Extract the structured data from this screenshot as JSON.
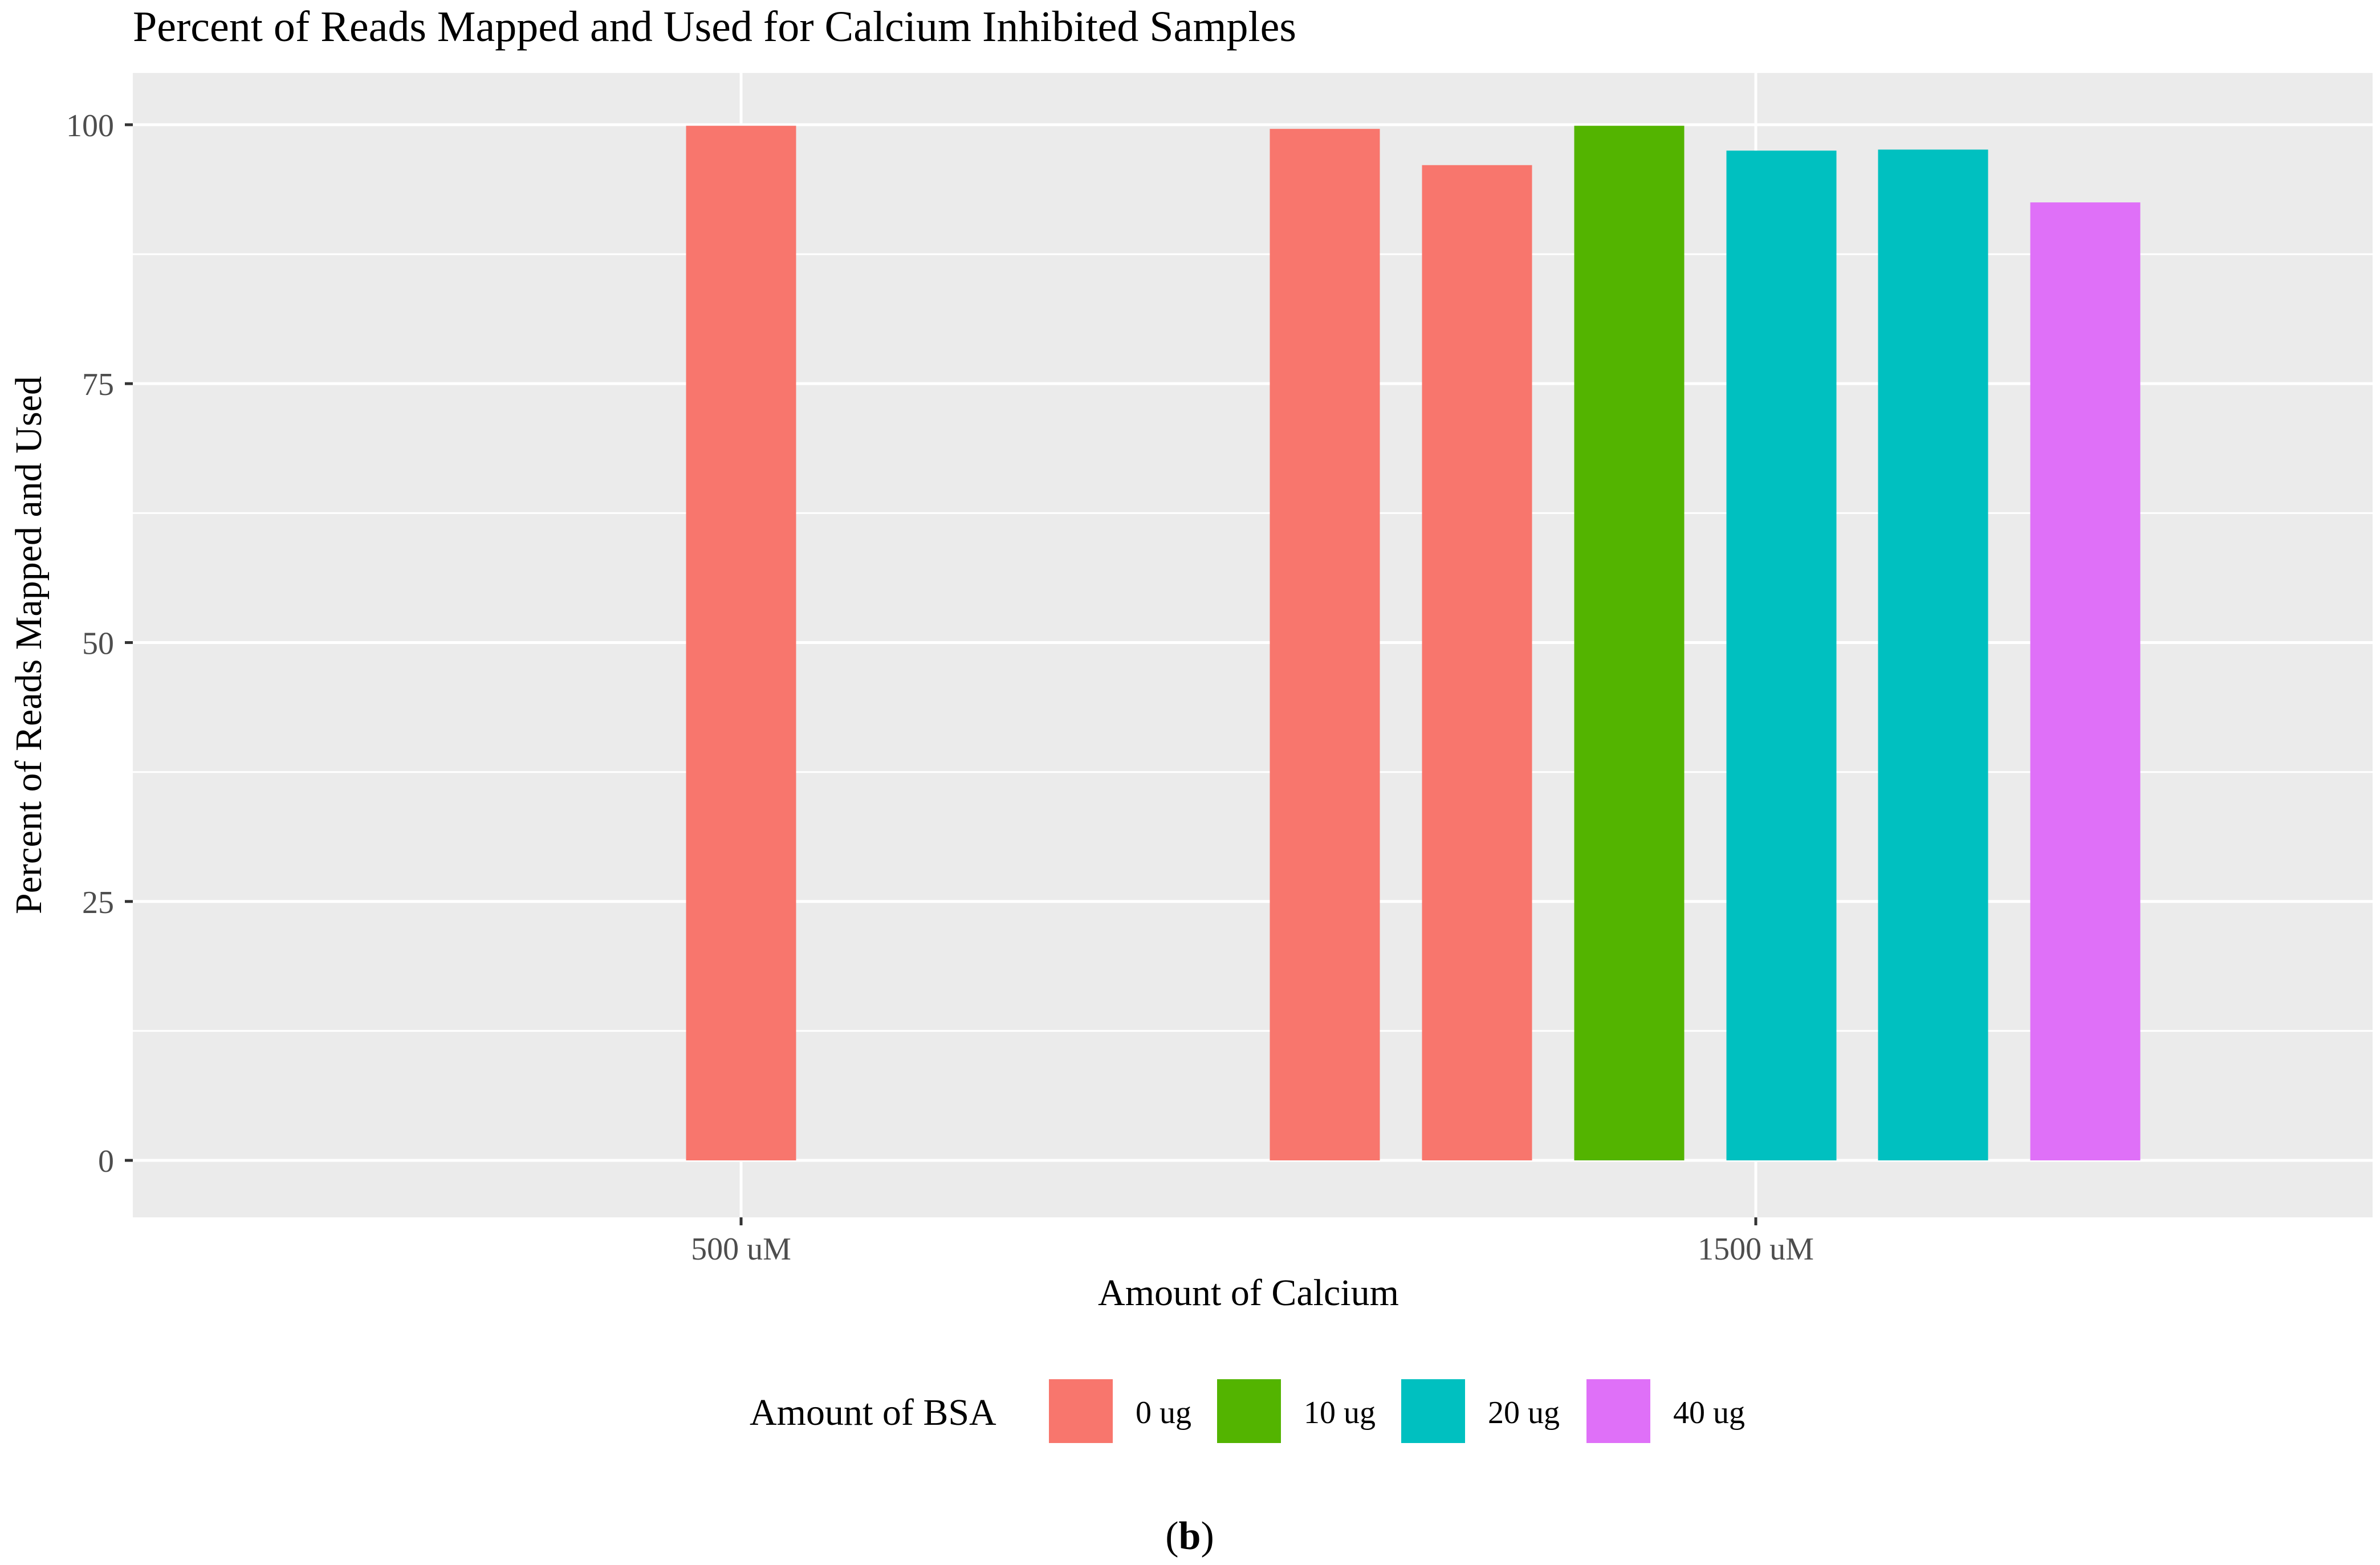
{
  "colors": {
    "panel_bg": "#EBEBEB",
    "grid": "#FFFFFF",
    "text": "#000000",
    "tick_text": "#4D4D4D",
    "tick_mark": "#333333"
  },
  "chart_data": {
    "type": "bar",
    "title": "Percent of Reads Mapped and Used for Calcium Inhibited Samples",
    "xlabel": "Amount of Calcium",
    "ylabel": "Percent of Reads Mapped and Used",
    "ylim": [
      -5.5,
      105
    ],
    "y_ticks": [
      0,
      25,
      50,
      75,
      100
    ],
    "y_tick_labels": [
      "0",
      "25",
      "50",
      "75",
      "100"
    ],
    "categories": [
      "500 uM",
      "1500 uM"
    ],
    "grid": true,
    "legend": {
      "title": "Amount of BSA",
      "position": "bottom",
      "entries": [
        {
          "label": "0 ug",
          "color": "#F8766D"
        },
        {
          "label": "10 ug",
          "color": "#53B400"
        },
        {
          "label": "20 ug",
          "color": "#00C0C0"
        },
        {
          "label": "40 ug",
          "color": "#DF70F8"
        }
      ]
    },
    "bars": [
      {
        "category": "500 uM",
        "group": "0 ug",
        "value": 99.9
      },
      {
        "category": "1500 uM",
        "group": "0 ug",
        "value": 99.6
      },
      {
        "category": "1500 uM",
        "group": "0 ug",
        "value": 96.1
      },
      {
        "category": "1500 uM",
        "group": "10 ug",
        "value": 99.9
      },
      {
        "category": "1500 uM",
        "group": "20 ug",
        "value": 97.5
      },
      {
        "category": "1500 uM",
        "group": "20 ug",
        "value": 97.6
      },
      {
        "category": "1500 uM",
        "group": "40 ug",
        "value": 92.5
      }
    ]
  },
  "caption": {
    "open": "(",
    "letter": "b",
    "close": ")"
  }
}
